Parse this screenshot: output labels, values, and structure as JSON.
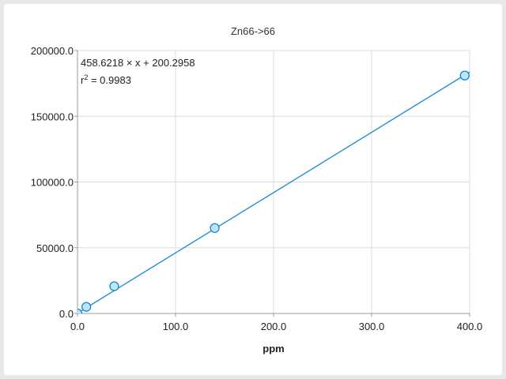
{
  "chart_data": {
    "type": "scatter",
    "title": "Zn66->66",
    "xlabel": "ppm",
    "ylabel": "",
    "xlim": [
      0,
      400
    ],
    "ylim": [
      0,
      200000
    ],
    "x_ticks": [
      "0.0",
      "100.0",
      "200.0",
      "300.0",
      "400.0"
    ],
    "y_ticks": [
      "0.0",
      "50000.0",
      "100000.0",
      "150000.0",
      "200000.0"
    ],
    "grid": true,
    "fit": {
      "equation": "458.6218 × x + 200.2958",
      "r2_label": "r",
      "r2_sup": "2",
      "r2_value": " = 0.9983",
      "slope": 458.6218,
      "intercept": 200.2958
    },
    "series": [
      {
        "x": [
          0,
          9,
          37.5,
          140,
          395
        ],
        "y": [
          0,
          5000,
          20700,
          65000,
          181000
        ]
      }
    ],
    "colors": {
      "line": "#1e90d6",
      "marker_fill": "#bde6fb",
      "marker_stroke": "#1a86c8"
    }
  }
}
